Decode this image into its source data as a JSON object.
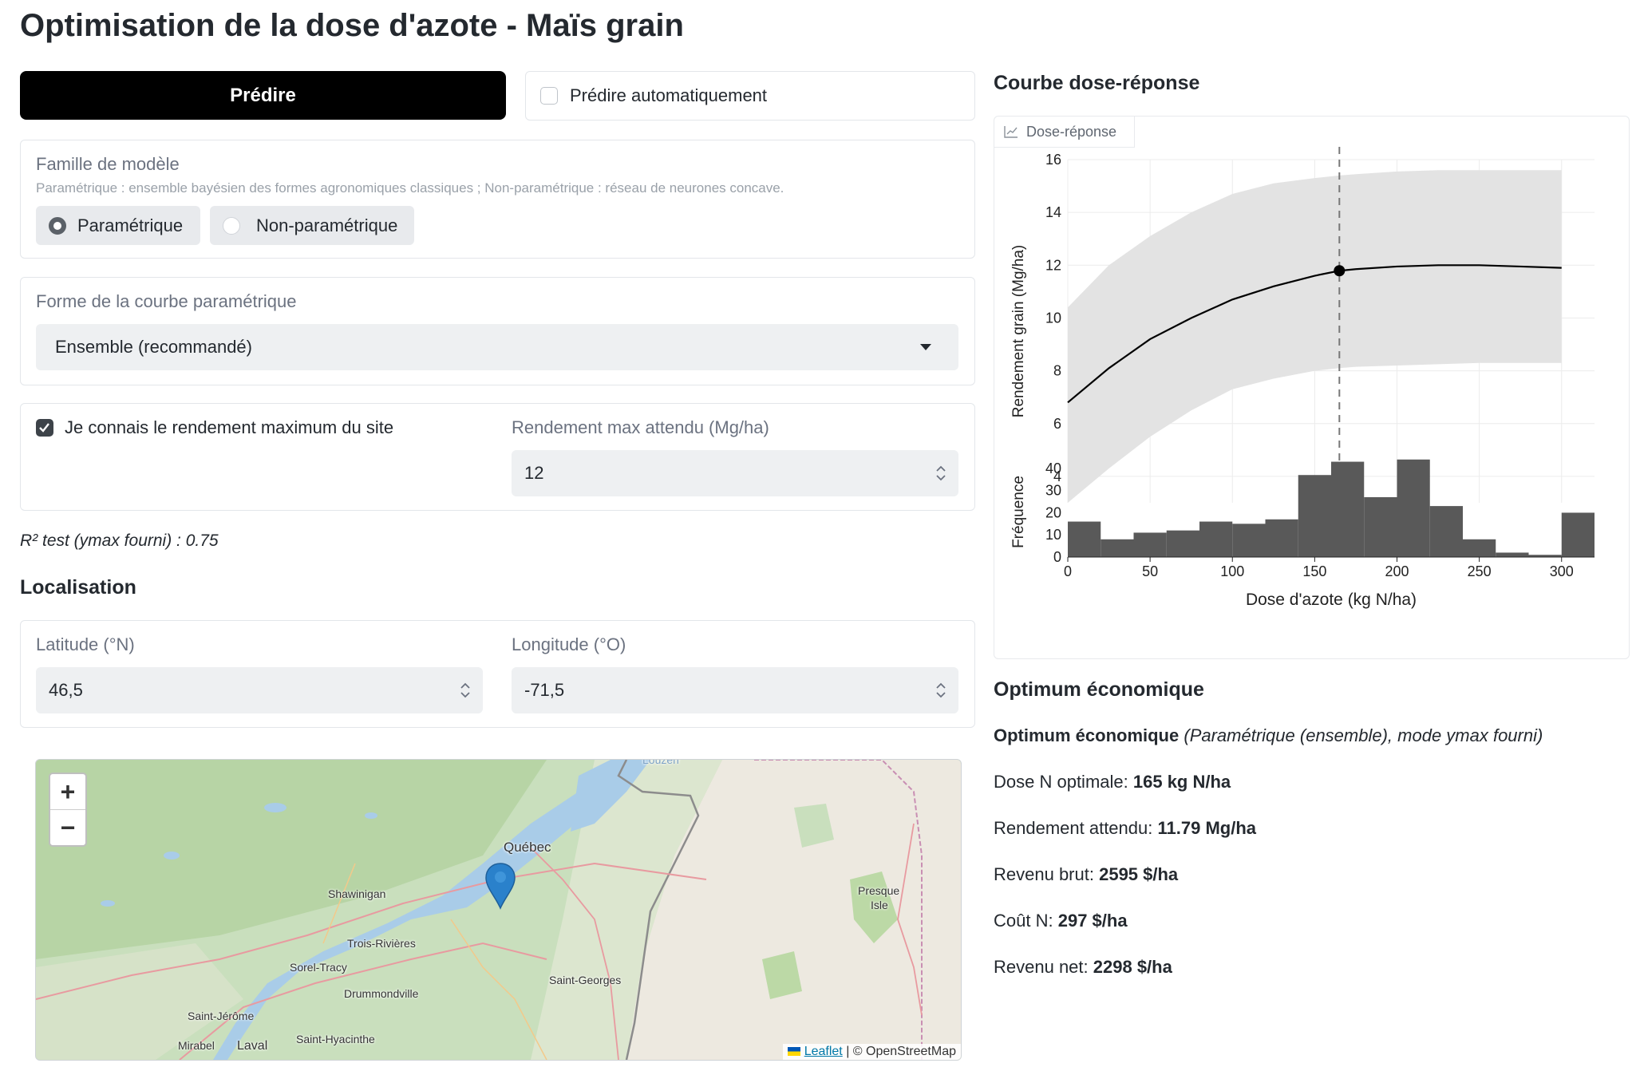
{
  "page": {
    "title": "Optimisation de la dose d'azote - Maïs grain"
  },
  "controls": {
    "predict_label": "Prédire",
    "auto_predict_label": "Prédire automatiquement",
    "auto_predict_checked": false
  },
  "model_family": {
    "label": "Famille de modèle",
    "help": "Paramétrique : ensemble bayésien des formes agronomiques classiques ; Non-paramétrique : réseau de neurones concave.",
    "options": [
      "Paramétrique",
      "Non-paramétrique"
    ],
    "selected": "Paramétrique"
  },
  "curve_shape": {
    "label": "Forme de la courbe paramétrique",
    "value": "Ensemble (recommandé)"
  },
  "ymax": {
    "checkbox_label": "Je connais le rendement maximum du site",
    "checked": true,
    "input_label": "Rendement max attendu (Mg/ha)",
    "input_value": "12"
  },
  "r2_text": "R² test (ymax fourni) : 0.75",
  "location": {
    "heading": "Localisation",
    "lat_label": "Latitude (°N)",
    "lat_value": "46,5",
    "lon_label": "Longitude (°O)",
    "lon_value": "-71,5"
  },
  "map": {
    "zoom_in": "+",
    "zoom_out": "−",
    "cities": [
      "Québec",
      "Shawinigan",
      "Trois-Rivières",
      "Sorel-Tracy",
      "Drummondville",
      "Saint-Jérôme",
      "Mirabel",
      "Laval",
      "Saint-Hyacinthe",
      "Saint-Georges",
      "Presque",
      "Isle",
      "Louzerr"
    ],
    "attribution_leaflet": "Leaflet",
    "attribution_osm": "| © OpenStreetMap",
    "marker_icon": "map-pin-icon"
  },
  "chart_section": {
    "heading": "Courbe dose-réponse",
    "tab_label": "Dose-réponse",
    "tab_icon": "chart-icon"
  },
  "chart_data": [
    {
      "type": "line",
      "ylabel": "Rendement grain (Mg/ha)",
      "xlim": [
        0,
        320
      ],
      "ylim": [
        3,
        16
      ],
      "yticks": [
        4,
        6,
        8,
        10,
        12,
        14,
        16
      ],
      "x": [
        0,
        25,
        50,
        75,
        100,
        125,
        150,
        165,
        175,
        200,
        225,
        250,
        275,
        300
      ],
      "y": [
        6.8,
        8.1,
        9.2,
        10.0,
        10.7,
        11.2,
        11.6,
        11.79,
        11.85,
        11.95,
        12.0,
        12.0,
        11.95,
        11.9
      ],
      "band_lower": [
        2.9,
        4.3,
        5.5,
        6.5,
        7.3,
        7.7,
        8.0,
        8.1,
        8.15,
        8.2,
        8.25,
        8.3,
        8.3,
        8.3
      ],
      "band_upper": [
        10.4,
        12.0,
        13.1,
        14.0,
        14.7,
        15.1,
        15.3,
        15.4,
        15.45,
        15.55,
        15.6,
        15.6,
        15.6,
        15.6
      ],
      "optimum_x": 165,
      "optimum_y": 11.79,
      "grid": true
    },
    {
      "type": "bar",
      "xlabel": "Dose d'azote (kg N/ha)",
      "ylabel": "Fréquence",
      "xlim": [
        0,
        320
      ],
      "ylim": [
        0,
        45
      ],
      "xticks": [
        0,
        50,
        100,
        150,
        200,
        250,
        300
      ],
      "yticks": [
        0,
        10,
        20,
        30,
        40
      ],
      "bin_width": 20,
      "bin_starts": [
        0,
        20,
        40,
        60,
        80,
        100,
        120,
        140,
        160,
        180,
        200,
        220,
        240,
        260,
        280,
        300
      ],
      "values": [
        16,
        8,
        11,
        12,
        16,
        15,
        17,
        37,
        43,
        27,
        44,
        23,
        8,
        2,
        1,
        20
      ],
      "color": "#595959"
    }
  ],
  "results": {
    "heading": "Optimum économique",
    "subtitle_bold": "Optimum économique",
    "subtitle_italic": "(Paramétrique (ensemble), mode ymax fourni)",
    "rows": [
      {
        "label": "Dose N optimale:",
        "value": "165 kg N/ha"
      },
      {
        "label": "Rendement attendu:",
        "value": "11.79 Mg/ha"
      },
      {
        "label": "Revenu brut:",
        "value": "2595 $/ha"
      },
      {
        "label": "Coût N:",
        "value": "297 $/ha"
      },
      {
        "label": "Revenu net:",
        "value": "2298 $/ha"
      }
    ]
  }
}
